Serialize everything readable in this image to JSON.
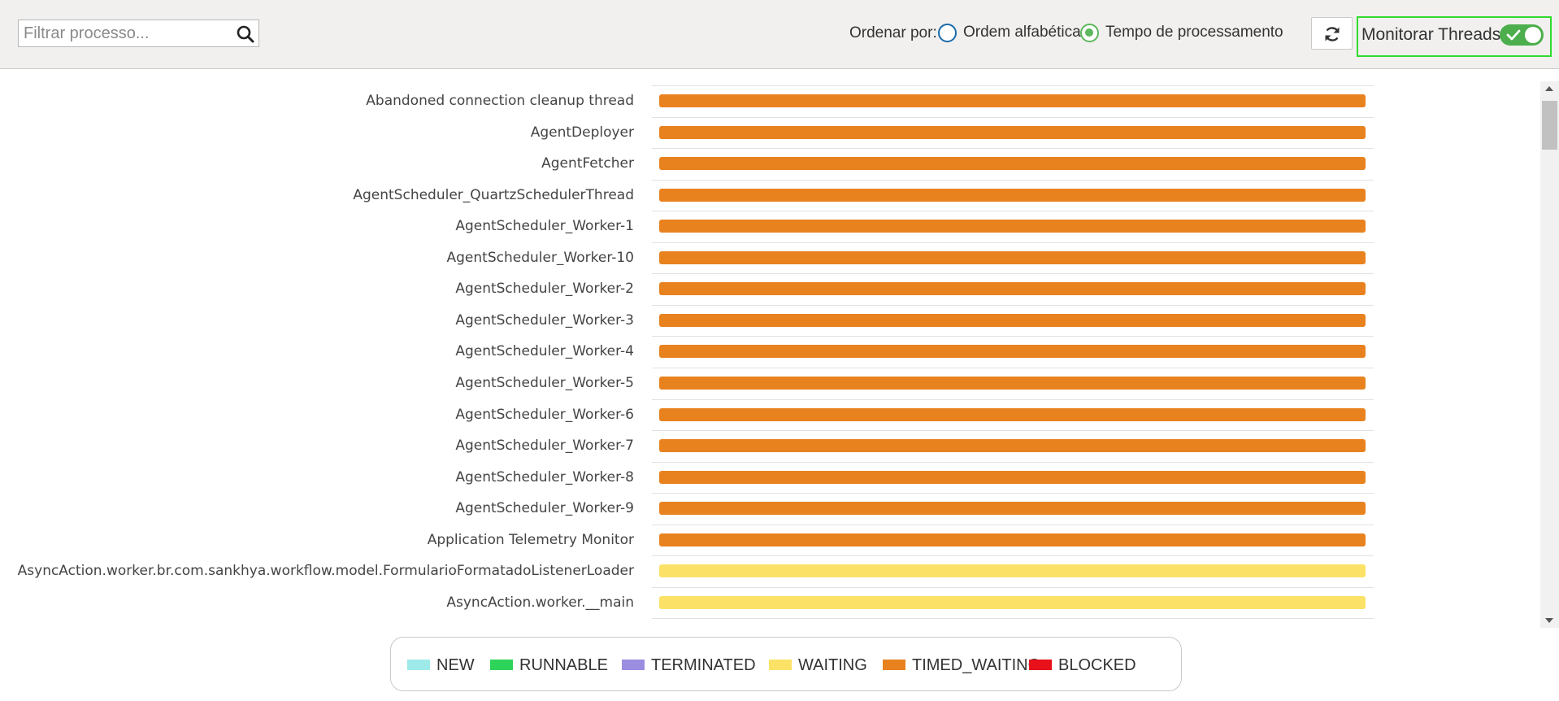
{
  "toolbar": {
    "search_placeholder": "Filtrar processo...",
    "search_value": "",
    "sort_label": "Ordenar por:",
    "sort_alpha_label": "Ordem alfabética",
    "sort_time_label": "Tempo de processamento",
    "sort_selected": "Tempo de processamento",
    "monitor_label": "Monitorar Threads",
    "monitor_enabled": true
  },
  "colors": {
    "NEW": "#9eeaea",
    "RUNNABLE": "#2ed45a",
    "TERMINATED": "#9b8ee0",
    "WAITING": "#fbe267",
    "TIMED_WAITING": "#e8821f",
    "BLOCKED": "#e8101a"
  },
  "threads": [
    {
      "name": "Abandoned connection cleanup thread",
      "state": "TIMED_WAITING"
    },
    {
      "name": "AgentDeployer",
      "state": "TIMED_WAITING"
    },
    {
      "name": "AgentFetcher",
      "state": "TIMED_WAITING"
    },
    {
      "name": "AgentScheduler_QuartzSchedulerThread",
      "state": "TIMED_WAITING"
    },
    {
      "name": "AgentScheduler_Worker-1",
      "state": "TIMED_WAITING"
    },
    {
      "name": "AgentScheduler_Worker-10",
      "state": "TIMED_WAITING"
    },
    {
      "name": "AgentScheduler_Worker-2",
      "state": "TIMED_WAITING"
    },
    {
      "name": "AgentScheduler_Worker-3",
      "state": "TIMED_WAITING"
    },
    {
      "name": "AgentScheduler_Worker-4",
      "state": "TIMED_WAITING"
    },
    {
      "name": "AgentScheduler_Worker-5",
      "state": "TIMED_WAITING"
    },
    {
      "name": "AgentScheduler_Worker-6",
      "state": "TIMED_WAITING"
    },
    {
      "name": "AgentScheduler_Worker-7",
      "state": "TIMED_WAITING"
    },
    {
      "name": "AgentScheduler_Worker-8",
      "state": "TIMED_WAITING"
    },
    {
      "name": "AgentScheduler_Worker-9",
      "state": "TIMED_WAITING"
    },
    {
      "name": "Application Telemetry Monitor",
      "state": "TIMED_WAITING"
    },
    {
      "name": "AsyncAction.worker.br.com.sankhya.workflow.model.FormularioFormatadoListenerLoader",
      "state": "WAITING"
    },
    {
      "name": "AsyncAction.worker.__main",
      "state": "WAITING"
    }
  ],
  "legend": [
    {
      "label": "NEW",
      "color": "#9eeaea"
    },
    {
      "label": "RUNNABLE",
      "color": "#2ed45a"
    },
    {
      "label": "TERMINATED",
      "color": "#9b8ee0"
    },
    {
      "label": "WAITING",
      "color": "#fbe267"
    },
    {
      "label": "TIMED_WAITING",
      "color": "#e8821f"
    },
    {
      "label": "BLOCKED",
      "color": "#e8101a"
    }
  ]
}
